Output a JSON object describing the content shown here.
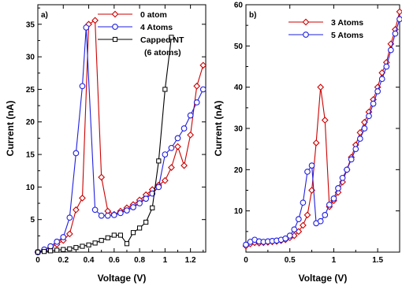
{
  "colors": {
    "red": "#cc0000",
    "blue": "#1f1fe0",
    "black": "#000000"
  },
  "chart_data": [
    {
      "type": "line",
      "panel_label": "a)",
      "xlabel": "Voltage (V)",
      "ylabel": "Current (nA)",
      "xlim": [
        0,
        1.32
      ],
      "ylim": [
        0,
        38
      ],
      "xticks": [
        0,
        0.2,
        0.4,
        0.6,
        0.8,
        1,
        1.2
      ],
      "xtick_labels": [
        "0",
        "0.2",
        "0.4",
        "0.6",
        "0.8",
        "1",
        "1.2"
      ],
      "yticks": [
        5,
        10,
        15,
        20,
        25,
        30,
        35
      ],
      "ytick_labels": [
        "5",
        "10",
        "15",
        "20",
        "25",
        "30",
        "35"
      ],
      "legend_position": "top-right",
      "series": [
        {
          "name": "0 atom",
          "color": "#cc0000",
          "marker": "diamond",
          "x": [
            0,
            0.05,
            0.1,
            0.15,
            0.2,
            0.25,
            0.3,
            0.35,
            0.4,
            0.45,
            0.5,
            0.55,
            0.6,
            0.65,
            0.7,
            0.75,
            0.8,
            0.85,
            0.9,
            0.95,
            1.0,
            1.05,
            1.1,
            1.15,
            1.2,
            1.25,
            1.3
          ],
          "y": [
            0,
            0.3,
            0.7,
            1.2,
            1.8,
            2.8,
            6.5,
            8.3,
            35.0,
            35.6,
            11.5,
            6.3,
            5.8,
            6.3,
            6.8,
            7.3,
            8.0,
            8.8,
            9.6,
            10.3,
            11.0,
            13.0,
            16.2,
            13.3,
            18.0,
            25.5,
            28.7
          ]
        },
        {
          "name": "4 Atoms",
          "color": "#1f1fe0",
          "marker": "circle",
          "x": [
            0,
            0.05,
            0.1,
            0.15,
            0.2,
            0.25,
            0.3,
            0.35,
            0.38,
            0.45,
            0.5,
            0.55,
            0.6,
            0.65,
            0.7,
            0.75,
            0.8,
            0.85,
            0.9,
            0.95,
            1.0,
            1.05,
            1.1,
            1.15,
            1.2,
            1.25,
            1.3
          ],
          "y": [
            0,
            0.4,
            0.9,
            1.6,
            2.3,
            5.3,
            15.2,
            25.5,
            34.5,
            6.5,
            5.6,
            5.6,
            5.7,
            6.0,
            6.4,
            6.9,
            7.5,
            8.2,
            9.0,
            10.0,
            15.0,
            16.0,
            17.5,
            19.0,
            21.0,
            23.0,
            25.0
          ]
        },
        {
          "name": "Capped NT\n(6 atoms)",
          "color": "#000000",
          "marker": "square",
          "x": [
            0,
            0.05,
            0.1,
            0.15,
            0.2,
            0.25,
            0.3,
            0.35,
            0.4,
            0.45,
            0.5,
            0.55,
            0.6,
            0.65,
            0.7,
            0.75,
            0.8,
            0.85,
            0.9,
            0.95,
            1.0,
            1.05
          ],
          "y": [
            0,
            0.1,
            0.2,
            0.3,
            0.4,
            0.5,
            0.7,
            0.9,
            1.1,
            1.4,
            1.8,
            2.2,
            2.6,
            2.6,
            1.3,
            3.0,
            3.7,
            4.6,
            6.8,
            14.0,
            25.0,
            33.0
          ]
        }
      ]
    },
    {
      "type": "line",
      "panel_label": "b)",
      "xlabel": "Voltage (V)",
      "ylabel": "Current (nA)",
      "xlim": [
        0,
        1.75
      ],
      "ylim": [
        0,
        60
      ],
      "xticks": [
        0,
        0.5,
        1,
        1.5
      ],
      "xtick_labels": [
        "0",
        "0.5",
        "1",
        "1.5"
      ],
      "yticks": [
        10,
        20,
        30,
        40,
        50,
        60
      ],
      "ytick_labels": [
        "10",
        "20",
        "30",
        "40",
        "50",
        "60"
      ],
      "legend_position": "top-center",
      "series": [
        {
          "name": "3 Atoms",
          "color": "#cc0000",
          "marker": "diamond",
          "x": [
            0,
            0.05,
            0.1,
            0.15,
            0.2,
            0.25,
            0.3,
            0.35,
            0.4,
            0.45,
            0.5,
            0.55,
            0.6,
            0.65,
            0.7,
            0.75,
            0.8,
            0.85,
            0.9,
            0.95,
            1.0,
            1.05,
            1.1,
            1.15,
            1.2,
            1.25,
            1.3,
            1.35,
            1.4,
            1.45,
            1.5,
            1.55,
            1.6,
            1.65,
            1.7,
            1.75
          ],
          "y": [
            1.5,
            2.0,
            2.3,
            2.2,
            2.3,
            2.4,
            2.5,
            2.6,
            2.8,
            3.0,
            3.5,
            4.0,
            5.0,
            6.5,
            9.0,
            15.0,
            26.5,
            40.0,
            32.0,
            11.0,
            12.5,
            14.5,
            17.0,
            20.0,
            23.0,
            26.0,
            29.0,
            31.5,
            34.0,
            37.0,
            40.0,
            43.5,
            46.0,
            50.5,
            54.0,
            58.3
          ]
        },
        {
          "name": "5 Atoms",
          "color": "#1f1fe0",
          "marker": "circle",
          "x": [
            0,
            0.05,
            0.1,
            0.15,
            0.2,
            0.25,
            0.3,
            0.35,
            0.4,
            0.45,
            0.5,
            0.55,
            0.6,
            0.65,
            0.7,
            0.75,
            0.8,
            0.85,
            0.9,
            0.95,
            1.0,
            1.05,
            1.1,
            1.15,
            1.2,
            1.25,
            1.3,
            1.35,
            1.4,
            1.45,
            1.5,
            1.55,
            1.6,
            1.65,
            1.7,
            1.75
          ],
          "y": [
            1.8,
            2.5,
            3.0,
            2.6,
            2.5,
            2.6,
            2.7,
            2.8,
            3.0,
            3.3,
            4.0,
            5.5,
            8.0,
            12.0,
            19.5,
            21.0,
            7.0,
            7.5,
            9.0,
            11.5,
            13.0,
            15.5,
            18.0,
            20.0,
            22.5,
            25.0,
            27.5,
            30.0,
            33.0,
            36.0,
            39.0,
            42.0,
            45.0,
            49.0,
            53.0,
            56.5
          ]
        }
      ]
    }
  ]
}
